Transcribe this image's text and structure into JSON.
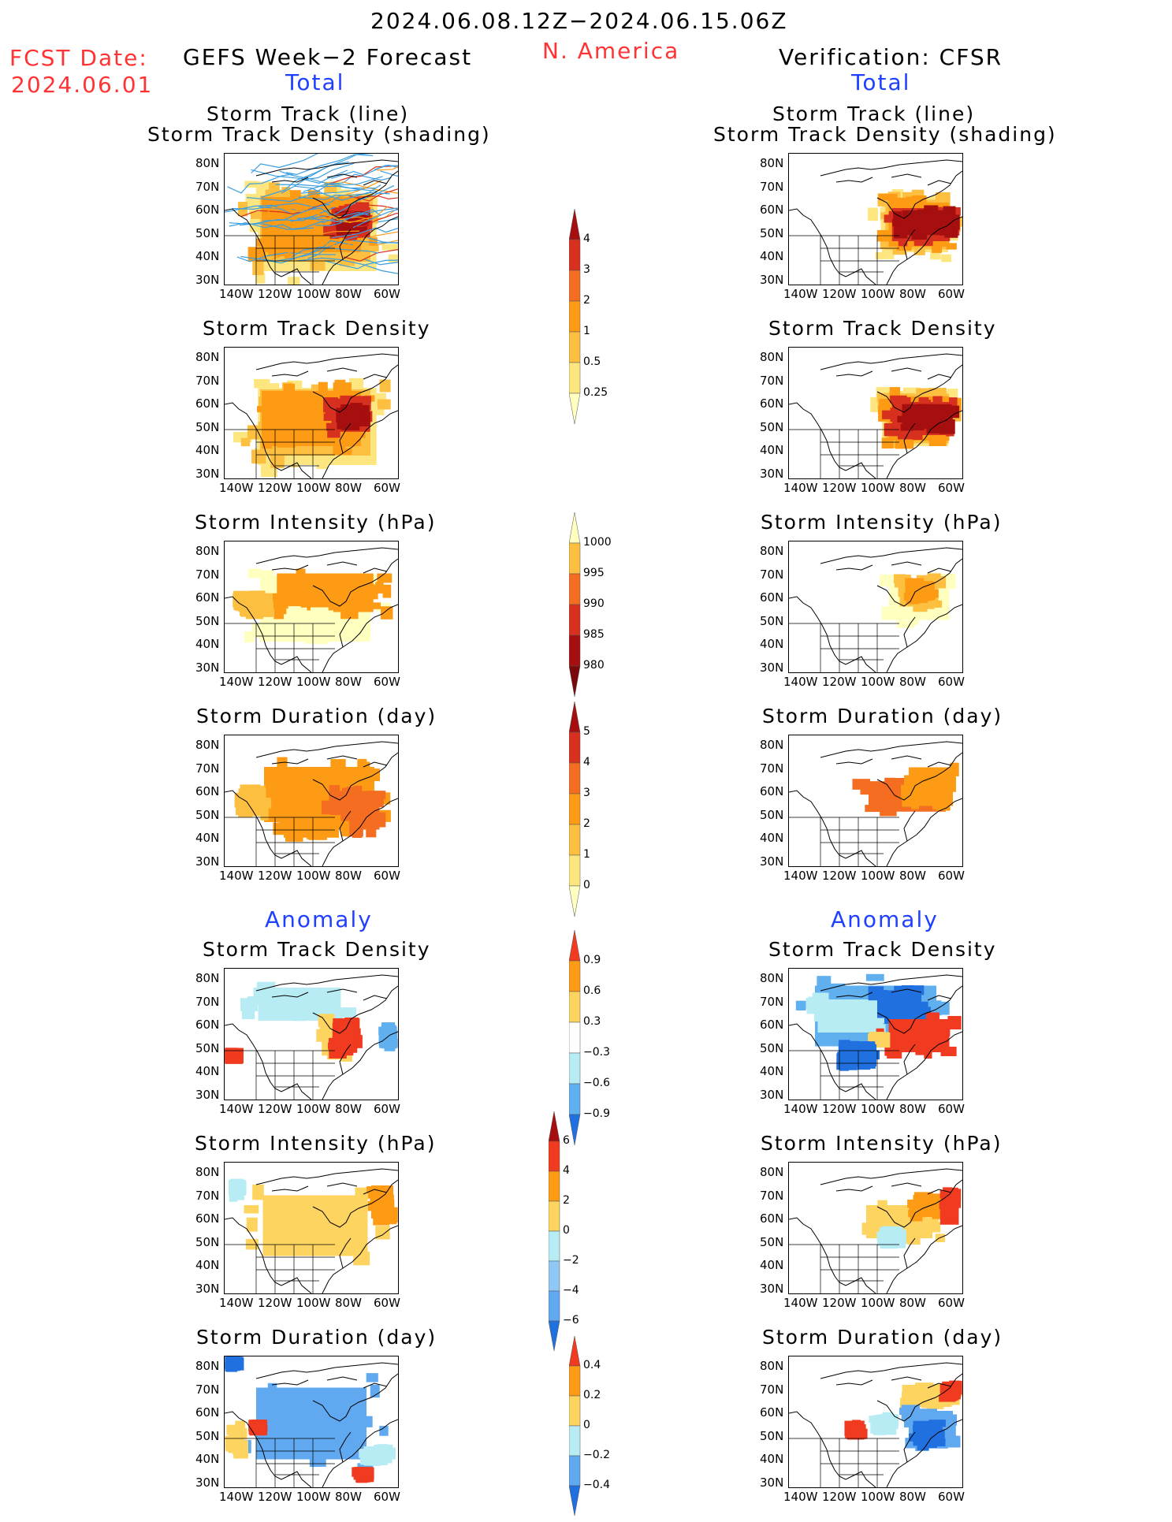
{
  "header": {
    "date_range": "2024.06.08.12Z−2024.06.15.06Z",
    "region": "N. America",
    "fcst_date_label": "FCST Date:",
    "fcst_date_value": "2024.06.01",
    "left_title": "GEFS Week−2 Forecast",
    "right_title": "Verification: CFSR",
    "left_total": "Total",
    "right_total": "Total",
    "left_anomaly": "Anomaly",
    "right_anomaly": "Anomaly"
  },
  "panels": {
    "track_line": "Storm Track (line)",
    "track_shading": "Storm Track Density (shading)",
    "density": "Storm Track Density",
    "intensity": "Storm Intensity (hPa)",
    "duration": "Storm Duration (day)"
  },
  "axes": {
    "lat": [
      "80N",
      "70N",
      "60N",
      "50N",
      "40N",
      "30N"
    ],
    "lon": [
      "140W",
      "120W",
      "100W",
      "80W",
      "60W"
    ]
  },
  "colorbars": {
    "density_total": {
      "labels": [
        "4",
        "3",
        "2",
        "1",
        "0.5",
        "0.25"
      ],
      "colors": [
        "#a50f0f",
        "#d7301f",
        "#f46d20",
        "#fd9b14",
        "#fdbf40",
        "#fde680",
        "#ffffc0"
      ]
    },
    "intensity_total": {
      "labels": [
        "1000",
        "995",
        "990",
        "985",
        "980"
      ],
      "colors": [
        "#ffffc0",
        "#fdbf40",
        "#f46d20",
        "#d7301f",
        "#a50f0f",
        "#7a0a0a"
      ]
    },
    "duration_total": {
      "labels": [
        "5",
        "4",
        "3",
        "2",
        "1",
        "0"
      ],
      "colors": [
        "#a50f0f",
        "#d7301f",
        "#f46d20",
        "#fd9b14",
        "#fdbf40",
        "#fde680",
        "#ffffc0"
      ]
    },
    "density_anom": {
      "labels": [
        "0.9",
        "0.6",
        "0.3",
        "−0.3",
        "−0.6",
        "−0.9"
      ],
      "colors": [
        "#f03b20",
        "#fd9b14",
        "#fdd460",
        "#ffffff",
        "#b8ecf5",
        "#60b0f0",
        "#2070e0"
      ]
    },
    "intensity_anom": {
      "labels": [
        "6",
        "4",
        "2",
        "0",
        "−2",
        "−4",
        "−6"
      ],
      "colors": [
        "#a50f0f",
        "#f03b20",
        "#fd9b14",
        "#fdd460",
        "#b8ecf5",
        "#90c8f5",
        "#60a8f0",
        "#2070e0"
      ]
    },
    "duration_anom": {
      "labels": [
        "0.4",
        "0.2",
        "0",
        "−0.2",
        "−0.4"
      ],
      "colors": [
        "#f03b20",
        "#fd9b14",
        "#fdd460",
        "#b8ecf5",
        "#60a8f0",
        "#2070e0"
      ]
    }
  }
}
